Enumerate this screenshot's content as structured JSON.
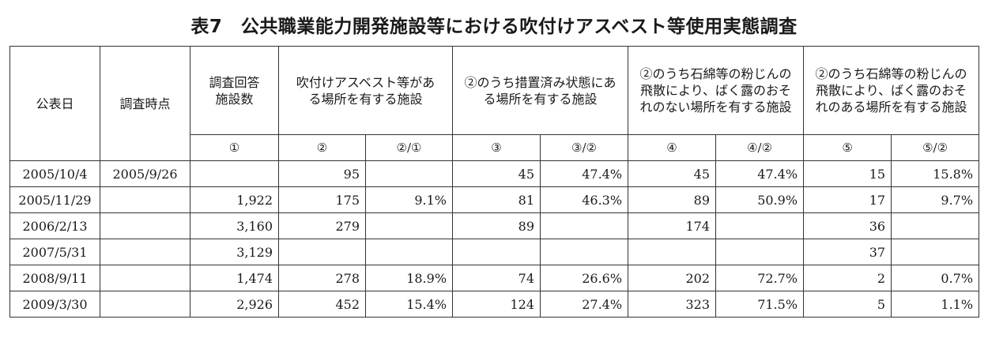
{
  "title": "表7　公共職業能力開発施設等における吹付けアスベスト等使用実態調査",
  "headers": {
    "date": "公表日",
    "survey_time": "調査時点",
    "respondents": "調査回答施設数",
    "with_asbestos": "吹付けアスベスト等がある場所を有する施設",
    "treated": "②のうち措置済み状態にある場所を有する施設",
    "no_exposure_risk": "②のうち石綿等の粉じんの飛散により、ばく露のおそれのない場所を有する施設",
    "exposure_risk": "②のうち石綿等の粉じんの飛散により、ばく露のおそれのある場所を有する施設"
  },
  "index_labels": [
    "①",
    "②",
    "②/①",
    "③",
    "③/②",
    "④",
    "④/②",
    "⑤",
    "⑤/②"
  ],
  "rows": [
    {
      "date": "2005/10/4",
      "survey_time": "2005/9/26",
      "c1": "",
      "c2": "95",
      "c2r": "",
      "c3": "45",
      "c3r": "47.4%",
      "c4": "45",
      "c4r": "47.4%",
      "c5": "15",
      "c5r": "15.8%"
    },
    {
      "date": "2005/11/29",
      "survey_time": "",
      "c1": "1,922",
      "c2": "175",
      "c2r": "9.1%",
      "c3": "81",
      "c3r": "46.3%",
      "c4": "89",
      "c4r": "50.9%",
      "c5": "17",
      "c5r": "9.7%"
    },
    {
      "date": "2006/2/13",
      "survey_time": "",
      "c1": "3,160",
      "c2": "279",
      "c2r": "",
      "c3": "89",
      "c3r": "",
      "c4": "174",
      "c4r": "",
      "c5": "36",
      "c5r": ""
    },
    {
      "date": "2007/5/31",
      "survey_time": "",
      "c1": "3,129",
      "c2": "",
      "c2r": "",
      "c3": "",
      "c3r": "",
      "c4": "",
      "c4r": "",
      "c5": "37",
      "c5r": ""
    },
    {
      "date": "2008/9/11",
      "survey_time": "",
      "c1": "1,474",
      "c2": "278",
      "c2r": "18.9%",
      "c3": "74",
      "c3r": "26.6%",
      "c4": "202",
      "c4r": "72.7%",
      "c5": "2",
      "c5r": "0.7%"
    },
    {
      "date": "2009/3/30",
      "survey_time": "",
      "c1": "2,926",
      "c2": "452",
      "c2r": "15.4%",
      "c3": "124",
      "c3r": "27.4%",
      "c4": "323",
      "c4r": "71.5%",
      "c5": "5",
      "c5r": "1.1%"
    }
  ]
}
